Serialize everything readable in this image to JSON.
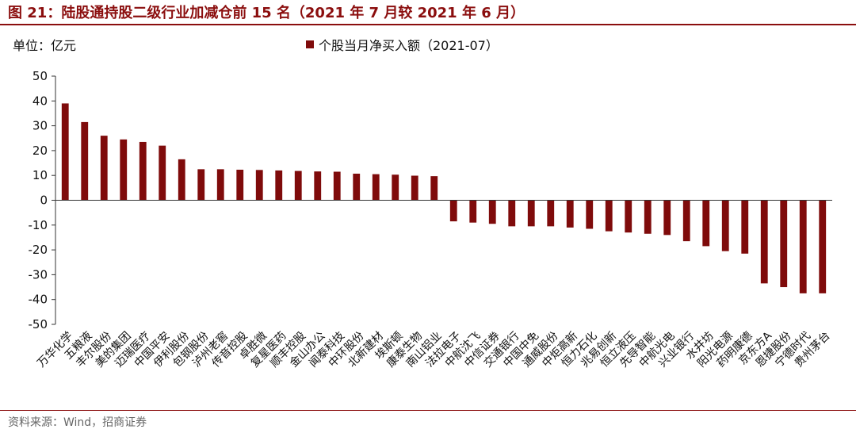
{
  "header": {
    "title": "图 21：陆股通持股二级行业加减仓前 15 名（2021 年 7 月较 2021 年 6 月）"
  },
  "unit_label": "单位：亿元",
  "source": "资料来源：Wind，招商证券",
  "colors": {
    "bar": "#7F0B0B",
    "title": "#8B0E0E"
  },
  "chart_data": {
    "type": "bar",
    "legend": "个股当月净买入额（2021-07）",
    "legend_position": "top",
    "ylim": [
      -50,
      50
    ],
    "yticks": [
      50,
      40,
      30,
      20,
      10,
      0,
      -10,
      -20,
      -30,
      -40,
      -50
    ],
    "grid": false,
    "categories": [
      "万华化学",
      "五粮液",
      "丰尔股份",
      "美的集团",
      "迈瑞医疗",
      "中国平安",
      "伊利股份",
      "包钢股份",
      "泸州老窖",
      "传音控股",
      "卓胜微",
      "复星医药",
      "顺丰控股",
      "金山办公",
      "闻泰科技",
      "中环股份",
      "北新建材",
      "埃斯顿",
      "康泰生物",
      "南山铝业",
      "法拉电子",
      "中航沈飞",
      "中信证券",
      "交通银行",
      "中国中免",
      "通威股份",
      "中炬高新",
      "恒力石化",
      "兆易创新",
      "恒立液压",
      "先导智能",
      "中航光电",
      "兴业银行",
      "水井坊",
      "阳光电源",
      "药明康德",
      "京东方A",
      "恩捷股份",
      "宁德时代",
      "贵州茅台"
    ],
    "values": [
      39,
      31.5,
      26,
      24.5,
      23.5,
      22,
      16.5,
      12.5,
      12.5,
      12.3,
      12.2,
      12,
      11.8,
      11.6,
      11.5,
      10.7,
      10.5,
      10.3,
      9.9,
      9.7,
      -8.5,
      -9,
      -9.5,
      -10.5,
      -10.5,
      -10.5,
      -11,
      -11.5,
      -12.5,
      -13,
      -13.5,
      -14,
      -16.5,
      -18.5,
      -20.5,
      -21.5,
      -33.5,
      -35,
      -37.5,
      -37.5
    ]
  }
}
